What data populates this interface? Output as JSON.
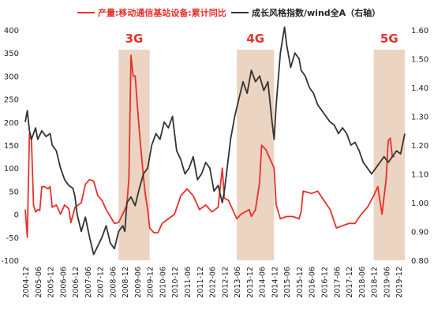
{
  "chart_data": {
    "type": "line",
    "legend": {
      "placement": "top",
      "items": [
        {
          "label": "产量:移动通信基站设备:累计同比",
          "color": "#e8302a"
        },
        {
          "label": "成长风格指数/wind全A（右轴）",
          "color": "#333333"
        }
      ]
    },
    "left_axis": {
      "min": -100,
      "max": 400,
      "ticks": [
        400,
        350,
        300,
        250,
        200,
        150,
        100,
        50,
        0,
        -50,
        -100
      ]
    },
    "right_axis": {
      "min": 0.8,
      "max": 1.6,
      "ticks": [
        "1.60",
        "1.50",
        "1.40",
        "1.30",
        "1.20",
        "1.10",
        "1.00",
        "0.90",
        "0.80"
      ]
    },
    "x_axis": {
      "start": "2004-12",
      "end": "2020-03",
      "ticks": [
        "2004-12",
        "2005-06",
        "2005-12",
        "2006-06",
        "2006-12",
        "2007-06",
        "2007-12",
        "2008-06",
        "2008-12",
        "2009-06",
        "2009-12",
        "2010-06",
        "2010-12",
        "2011-06",
        "2011-12",
        "2012-06",
        "2012-12",
        "2013-06",
        "2013-12",
        "2014-06",
        "2014-12",
        "2015-06",
        "2015-12",
        "2016-06",
        "2016-12",
        "2017-06",
        "2017-12",
        "2018-06",
        "2018-12",
        "2019-06",
        "2019-12"
      ]
    },
    "regions": [
      {
        "label": "3G",
        "start": "2008-09",
        "end": "2009-12"
      },
      {
        "label": "4G",
        "start": "2013-06",
        "end": "2014-12"
      },
      {
        "label": "5G",
        "start": "2018-12",
        "end": "2020-03"
      }
    ],
    "series": [
      {
        "name": "产量:移动通信基站设备:累计同比",
        "axis": "left",
        "color": "#e8302a",
        "points": [
          [
            "2004-12",
            10
          ],
          [
            "2005-01",
            -50
          ],
          [
            "2005-02",
            175
          ],
          [
            "2005-03",
            160
          ],
          [
            "2005-04",
            20
          ],
          [
            "2005-05",
            5
          ],
          [
            "2005-06",
            10
          ],
          [
            "2005-07",
            8
          ],
          [
            "2005-08",
            60
          ],
          [
            "2005-09",
            60
          ],
          [
            "2005-10",
            58
          ],
          [
            "2005-11",
            55
          ],
          [
            "2005-12",
            60
          ],
          [
            "2006-01",
            15
          ],
          [
            "2006-03",
            20
          ],
          [
            "2006-05",
            0
          ],
          [
            "2006-07",
            20
          ],
          [
            "2006-09",
            12
          ],
          [
            "2006-10",
            -18
          ],
          [
            "2006-12",
            15
          ],
          [
            "2007-03",
            25
          ],
          [
            "2007-05",
            65
          ],
          [
            "2007-07",
            75
          ],
          [
            "2007-09",
            72
          ],
          [
            "2007-11",
            40
          ],
          [
            "2008-01",
            30
          ],
          [
            "2008-03",
            10
          ],
          [
            "2008-05",
            -5
          ],
          [
            "2008-07",
            -20
          ],
          [
            "2008-09",
            -18
          ],
          [
            "2008-11",
            0
          ],
          [
            "2009-01",
            20
          ],
          [
            "2009-02",
            80
          ],
          [
            "2009-03",
            345
          ],
          [
            "2009-04",
            300
          ],
          [
            "2009-05",
            300
          ],
          [
            "2009-06",
            240
          ],
          [
            "2009-07",
            180
          ],
          [
            "2009-08",
            130
          ],
          [
            "2009-09",
            80
          ],
          [
            "2009-10",
            40
          ],
          [
            "2009-11",
            10
          ],
          [
            "2009-12",
            -30
          ],
          [
            "2010-02",
            -40
          ],
          [
            "2010-04",
            -40
          ],
          [
            "2010-06",
            -20
          ],
          [
            "2010-09",
            -10
          ],
          [
            "2010-12",
            0
          ],
          [
            "2011-03",
            40
          ],
          [
            "2011-06",
            55
          ],
          [
            "2011-09",
            40
          ],
          [
            "2011-12",
            10
          ],
          [
            "2012-03",
            20
          ],
          [
            "2012-06",
            5
          ],
          [
            "2012-09",
            15
          ],
          [
            "2012-11",
            100
          ],
          [
            "2012-12",
            35
          ],
          [
            "2013-02",
            30
          ],
          [
            "2013-04",
            10
          ],
          [
            "2013-06",
            -10
          ],
          [
            "2013-08",
            0
          ],
          [
            "2013-10",
            5
          ],
          [
            "2013-12",
            10
          ],
          [
            "2014-01",
            -5
          ],
          [
            "2014-03",
            10
          ],
          [
            "2014-05",
            70
          ],
          [
            "2014-06",
            150
          ],
          [
            "2014-07",
            145
          ],
          [
            "2014-08",
            140
          ],
          [
            "2014-09",
            130
          ],
          [
            "2014-10",
            120
          ],
          [
            "2014-11",
            110
          ],
          [
            "2014-12",
            100
          ],
          [
            "2015-01",
            20
          ],
          [
            "2015-03",
            -10
          ],
          [
            "2015-06",
            -5
          ],
          [
            "2015-09",
            -5
          ],
          [
            "2015-12",
            -10
          ],
          [
            "2016-01",
            5
          ],
          [
            "2016-02",
            50
          ],
          [
            "2016-06",
            45
          ],
          [
            "2016-09",
            50
          ],
          [
            "2016-12",
            30
          ],
          [
            "2017-03",
            10
          ],
          [
            "2017-06",
            -30
          ],
          [
            "2017-09",
            -25
          ],
          [
            "2017-12",
            -20
          ],
          [
            "2018-03",
            -20
          ],
          [
            "2018-06",
            0
          ],
          [
            "2018-09",
            15
          ],
          [
            "2018-12",
            40
          ],
          [
            "2019-02",
            60
          ],
          [
            "2019-04",
            0
          ],
          [
            "2019-06",
            75
          ],
          [
            "2019-07",
            160
          ],
          [
            "2019-08",
            165
          ],
          [
            "2019-09",
            125
          ],
          [
            "2019-10",
            125
          ]
        ]
      },
      {
        "name": "成长风格指数/wind全A（右轴）",
        "axis": "right",
        "color": "#333333",
        "points": [
          [
            "2004-12",
            1.28
          ],
          [
            "2005-01",
            1.32
          ],
          [
            "2005-02",
            1.25
          ],
          [
            "2005-03",
            1.22
          ],
          [
            "2005-05",
            1.26
          ],
          [
            "2005-06",
            1.22
          ],
          [
            "2005-08",
            1.25
          ],
          [
            "2005-10",
            1.23
          ],
          [
            "2005-12",
            1.24
          ],
          [
            "2006-01",
            1.2
          ],
          [
            "2006-03",
            1.18
          ],
          [
            "2006-05",
            1.12
          ],
          [
            "2006-07",
            1.08
          ],
          [
            "2006-09",
            1.06
          ],
          [
            "2006-11",
            1.05
          ],
          [
            "2006-12",
            1.02
          ],
          [
            "2007-01",
            0.96
          ],
          [
            "2007-03",
            0.9
          ],
          [
            "2007-05",
            0.95
          ],
          [
            "2007-07",
            0.88
          ],
          [
            "2007-09",
            0.82
          ],
          [
            "2007-11",
            0.85
          ],
          [
            "2008-01",
            0.88
          ],
          [
            "2008-03",
            0.92
          ],
          [
            "2008-05",
            0.86
          ],
          [
            "2008-07",
            0.84
          ],
          [
            "2008-09",
            0.9
          ],
          [
            "2008-11",
            0.92
          ],
          [
            "2008-12",
            0.9
          ],
          [
            "2009-01",
            1.0
          ],
          [
            "2009-03",
            1.02
          ],
          [
            "2009-05",
            0.99
          ],
          [
            "2009-07",
            1.05
          ],
          [
            "2009-09",
            1.1
          ],
          [
            "2009-11",
            1.12
          ],
          [
            "2010-01",
            1.2
          ],
          [
            "2010-03",
            1.24
          ],
          [
            "2010-05",
            1.22
          ],
          [
            "2010-07",
            1.28
          ],
          [
            "2010-09",
            1.26
          ],
          [
            "2010-11",
            1.3
          ],
          [
            "2011-01",
            1.18
          ],
          [
            "2011-03",
            1.15
          ],
          [
            "2011-05",
            1.1
          ],
          [
            "2011-07",
            1.12
          ],
          [
            "2011-09",
            1.16
          ],
          [
            "2011-11",
            1.08
          ],
          [
            "2012-01",
            1.1
          ],
          [
            "2012-03",
            1.14
          ],
          [
            "2012-05",
            1.12
          ],
          [
            "2012-07",
            1.04
          ],
          [
            "2012-09",
            1.06
          ],
          [
            "2012-11",
            1.0
          ],
          [
            "2012-12",
            1.04
          ],
          [
            "2013-01",
            1.1
          ],
          [
            "2013-03",
            1.22
          ],
          [
            "2013-05",
            1.3
          ],
          [
            "2013-07",
            1.36
          ],
          [
            "2013-09",
            1.42
          ],
          [
            "2013-11",
            1.38
          ],
          [
            "2014-01",
            1.46
          ],
          [
            "2014-03",
            1.42
          ],
          [
            "2014-05",
            1.44
          ],
          [
            "2014-07",
            1.39
          ],
          [
            "2014-09",
            1.42
          ],
          [
            "2014-11",
            1.28
          ],
          [
            "2014-12",
            1.22
          ],
          [
            "2015-01",
            1.34
          ],
          [
            "2015-03",
            1.52
          ],
          [
            "2015-05",
            1.61
          ],
          [
            "2015-06",
            1.55
          ],
          [
            "2015-08",
            1.47
          ],
          [
            "2015-10",
            1.52
          ],
          [
            "2015-12",
            1.5
          ],
          [
            "2016-01",
            1.46
          ],
          [
            "2016-03",
            1.44
          ],
          [
            "2016-05",
            1.4
          ],
          [
            "2016-07",
            1.38
          ],
          [
            "2016-09",
            1.34
          ],
          [
            "2016-11",
            1.32
          ],
          [
            "2017-01",
            1.3
          ],
          [
            "2017-03",
            1.28
          ],
          [
            "2017-05",
            1.27
          ],
          [
            "2017-07",
            1.24
          ],
          [
            "2017-09",
            1.26
          ],
          [
            "2017-11",
            1.24
          ],
          [
            "2018-01",
            1.2
          ],
          [
            "2018-03",
            1.21
          ],
          [
            "2018-05",
            1.18
          ],
          [
            "2018-07",
            1.14
          ],
          [
            "2018-09",
            1.12
          ],
          [
            "2018-11",
            1.1
          ],
          [
            "2019-01",
            1.12
          ],
          [
            "2019-03",
            1.14
          ],
          [
            "2019-05",
            1.16
          ],
          [
            "2019-07",
            1.14
          ],
          [
            "2019-09",
            1.16
          ],
          [
            "2019-11",
            1.18
          ],
          [
            "2020-01",
            1.17
          ],
          [
            "2020-03",
            1.24
          ]
        ]
      }
    ]
  }
}
